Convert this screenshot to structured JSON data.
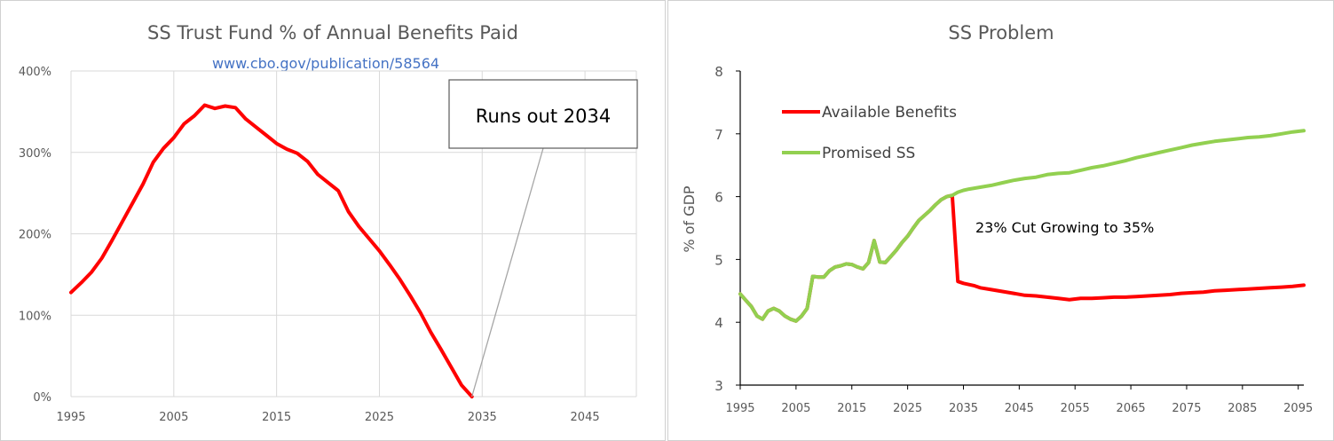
{
  "chart_data": [
    {
      "type": "line",
      "title": "SS Trust Fund % of Annual Benefits Paid",
      "subtitle": "www.cbo.gov/publication/58564",
      "xlabel": "",
      "ylabel": "",
      "xlim": [
        1995,
        2050
      ],
      "ylim": [
        0,
        400
      ],
      "x_ticks": [
        "1995",
        "2005",
        "2015",
        "2025",
        "2035",
        "2045"
      ],
      "y_ticks": [
        "0%",
        "100%",
        "200%",
        "300%",
        "400%"
      ],
      "grid": "vertical and horizontal",
      "annotation": "Runs out 2034",
      "annotation_points_to": [
        2034,
        0
      ],
      "colors": {
        "series": "#ff0000",
        "grid": "#d9d9d9",
        "leader": "#a6a6a6"
      },
      "series": [
        {
          "x": [
            1995,
            1996,
            1997,
            1998,
            1999,
            2000,
            2001,
            2002,
            2003,
            2004,
            2005,
            2006,
            2007,
            2008,
            2009,
            2010,
            2011,
            2012,
            2013,
            2014,
            2015,
            2016,
            2017,
            2018,
            2019,
            2020,
            2021,
            2022,
            2023,
            2024,
            2025,
            2026,
            2027,
            2028,
            2029,
            2030,
            2031,
            2032,
            2033,
            2034
          ],
          "values": [
            128,
            140,
            153,
            170,
            192,
            215,
            238,
            261,
            288,
            305,
            318,
            335,
            345,
            358,
            354,
            357,
            355,
            341,
            331,
            321,
            311,
            304,
            299,
            289,
            273,
            263,
            253,
            227,
            209,
            194,
            179,
            162,
            144,
            124,
            103,
            79,
            58,
            36,
            14,
            0
          ]
        }
      ]
    },
    {
      "type": "line",
      "title": "SS Problem",
      "xlabel": "",
      "ylabel": "% of GDP",
      "xlim": [
        1995,
        2096
      ],
      "ylim": [
        3,
        8
      ],
      "x_ticks": [
        "1995",
        "2005",
        "2015",
        "2025",
        "2035",
        "2045",
        "2055",
        "2065",
        "2075",
        "2085",
        "2095"
      ],
      "y_ticks": [
        "3",
        "4",
        "5",
        "6",
        "7",
        "8"
      ],
      "grid": "none",
      "legend": "upper-left",
      "annotation": "23% Cut Growing to 35%",
      "colors": {
        "available": "#ff0000",
        "promised": "#92d050"
      },
      "series": [
        {
          "name": "Available Benefits",
          "x": [
            1995,
            1996,
            1997,
            1998,
            1999,
            2000,
            2001,
            2002,
            2003,
            2004,
            2005,
            2006,
            2007,
            2008,
            2009,
            2010,
            2011,
            2012,
            2013,
            2014,
            2015,
            2016,
            2017,
            2018,
            2019,
            2020,
            2021,
            2022,
            2023,
            2024,
            2025,
            2026,
            2027,
            2028,
            2029,
            2030,
            2031,
            2032,
            2033,
            2034,
            2035,
            2036,
            2037,
            2038,
            2040,
            2042,
            2044,
            2046,
            2048,
            2050,
            2052,
            2054,
            2056,
            2058,
            2060,
            2062,
            2064,
            2066,
            2068,
            2070,
            2072,
            2074,
            2076,
            2078,
            2080,
            2082,
            2084,
            2086,
            2088,
            2090,
            2092,
            2094,
            2096
          ],
          "values": [
            4.45,
            4.35,
            4.25,
            4.1,
            4.05,
            4.18,
            4.22,
            4.18,
            4.1,
            4.05,
            4.02,
            4.1,
            4.22,
            4.73,
            4.72,
            4.72,
            4.82,
            4.88,
            4.9,
            4.93,
            4.92,
            4.88,
            4.85,
            4.95,
            5.3,
            4.96,
            4.95,
            5.05,
            5.15,
            5.27,
            5.37,
            5.5,
            5.62,
            5.7,
            5.78,
            5.87,
            5.95,
            6.0,
            6.02,
            4.65,
            4.62,
            4.6,
            4.58,
            4.55,
            4.52,
            4.49,
            4.46,
            4.43,
            4.42,
            4.4,
            4.38,
            4.36,
            4.38,
            4.38,
            4.39,
            4.4,
            4.4,
            4.41,
            4.42,
            4.43,
            4.44,
            4.46,
            4.47,
            4.48,
            4.5,
            4.51,
            4.52,
            4.53,
            4.54,
            4.55,
            4.56,
            4.57,
            4.59
          ]
        },
        {
          "name": "Promised SS",
          "x": [
            1995,
            1996,
            1997,
            1998,
            1999,
            2000,
            2001,
            2002,
            2003,
            2004,
            2005,
            2006,
            2007,
            2008,
            2009,
            2010,
            2011,
            2012,
            2013,
            2014,
            2015,
            2016,
            2017,
            2018,
            2019,
            2020,
            2021,
            2022,
            2023,
            2024,
            2025,
            2026,
            2027,
            2028,
            2029,
            2030,
            2031,
            2032,
            2033,
            2034,
            2035,
            2036,
            2038,
            2040,
            2042,
            2044,
            2046,
            2048,
            2050,
            2052,
            2054,
            2056,
            2058,
            2060,
            2062,
            2064,
            2066,
            2068,
            2070,
            2072,
            2074,
            2076,
            2078,
            2080,
            2082,
            2084,
            2086,
            2088,
            2090,
            2092,
            2094,
            2096
          ],
          "values": [
            4.45,
            4.35,
            4.25,
            4.1,
            4.05,
            4.18,
            4.22,
            4.18,
            4.1,
            4.05,
            4.02,
            4.1,
            4.22,
            4.73,
            4.72,
            4.72,
            4.82,
            4.88,
            4.9,
            4.93,
            4.92,
            4.88,
            4.85,
            4.95,
            5.3,
            4.96,
            4.95,
            5.05,
            5.15,
            5.27,
            5.37,
            5.5,
            5.62,
            5.7,
            5.78,
            5.87,
            5.95,
            6.0,
            6.02,
            6.07,
            6.1,
            6.12,
            6.15,
            6.18,
            6.22,
            6.26,
            6.29,
            6.31,
            6.35,
            6.37,
            6.38,
            6.42,
            6.46,
            6.49,
            6.53,
            6.57,
            6.62,
            6.66,
            6.7,
            6.74,
            6.78,
            6.82,
            6.85,
            6.88,
            6.9,
            6.92,
            6.94,
            6.95,
            6.97,
            7.0,
            7.03,
            7.05
          ]
        }
      ]
    }
  ]
}
